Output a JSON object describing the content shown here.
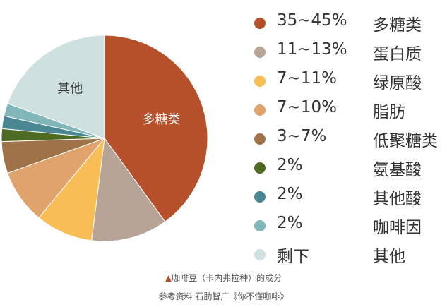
{
  "chart_data": {
    "type": "pie",
    "slices": [
      {
        "range": "35~45%",
        "label": "多糖类",
        "value": 40,
        "color": "#b5502a",
        "slice_label": "多糖类"
      },
      {
        "range": "11~13%",
        "label": "蛋白质",
        "value": 12,
        "color": "#b8a497",
        "slice_label": ""
      },
      {
        "range": "7~11%",
        "label": "绿原酸",
        "value": 9,
        "color": "#f8bd55",
        "slice_label": ""
      },
      {
        "range": "7~10%",
        "label": "脂肪",
        "value": 8.5,
        "color": "#dfa36b",
        "slice_label": ""
      },
      {
        "range": "3~7%",
        "label": "低聚糖类",
        "value": 5,
        "color": "#9e7349",
        "slice_label": ""
      },
      {
        "range": "2%",
        "label": "氨基酸",
        "value": 2,
        "color": "#4e6b24",
        "slice_label": ""
      },
      {
        "range": "2%",
        "label": "其他酸",
        "value": 2,
        "color": "#4b8793",
        "slice_label": ""
      },
      {
        "range": "2%",
        "label": "咖啡因",
        "value": 2,
        "color": "#82b7b9",
        "slice_label": ""
      },
      {
        "range": "剩下",
        "label": "其他",
        "value": 19.5,
        "color": "#cfe0e0",
        "slice_label": "其他"
      }
    ]
  },
  "caption": {
    "marker": "▲",
    "title": "咖啡豆（卡内弗拉种）的成分",
    "source": "参考资料 石肋智广《你不懂咖啡》"
  }
}
